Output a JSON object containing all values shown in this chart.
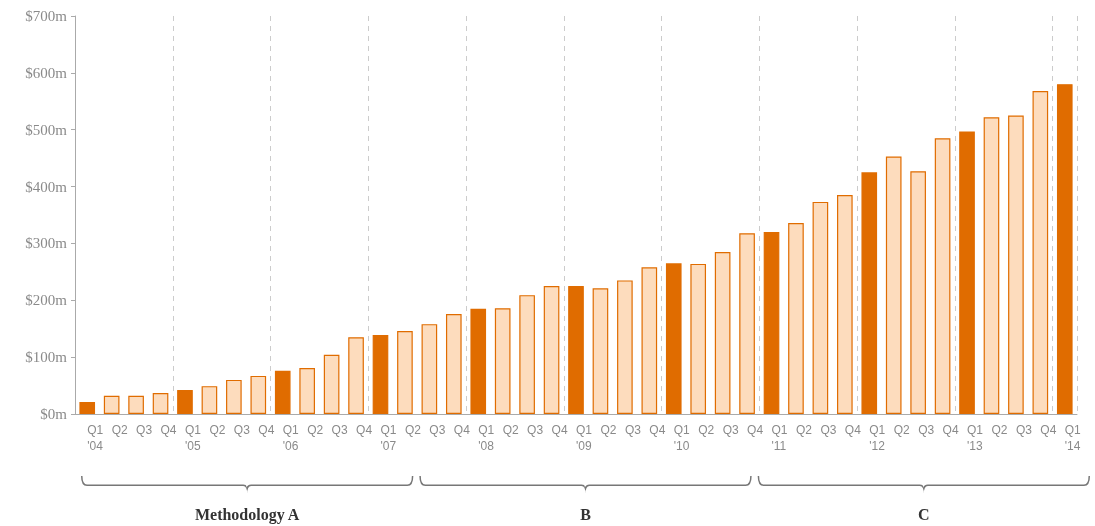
{
  "chart_data": {
    "type": "bar",
    "categories": [
      "Q1 '04",
      "Q2",
      "Q3",
      "Q4",
      "Q1 '05",
      "Q2",
      "Q3",
      "Q4",
      "Q1 '06",
      "Q2",
      "Q3",
      "Q4",
      "Q1 '07",
      "Q2",
      "Q3",
      "Q4",
      "Q1 '08",
      "Q2",
      "Q3",
      "Q4",
      "Q1 '09",
      "Q2",
      "Q3",
      "Q4",
      "Q1 '10",
      "Q2",
      "Q3",
      "Q4",
      "Q1 '11",
      "Q2",
      "Q3",
      "Q4",
      "Q1 '12",
      "Q2",
      "Q3",
      "Q4",
      "Q1 '13",
      "Q2",
      "Q3",
      "Q4",
      "Q1 '14"
    ],
    "series": [
      {
        "color": "#e06c00",
        "values": [
          21,
          32,
          32,
          37,
          42,
          49,
          60,
          67,
          76,
          81,
          104,
          135,
          139,
          146,
          158,
          176,
          185,
          186,
          209,
          225,
          225,
          221,
          235,
          258,
          265,
          264,
          285,
          318,
          320,
          336,
          373,
          385,
          425,
          453,
          427,
          485,
          497,
          522,
          525,
          568,
          580
        ],
        "colors": [
          "#e06c00",
          "#fddcbd",
          "#fddcbd",
          "#fddcbd",
          "#e06c00",
          "#fddcbd",
          "#fddcbd",
          "#fddcbd",
          "#e06c00",
          "#fddcbd",
          "#fddcbd",
          "#fddcbd",
          "#e06c00",
          "#fddcbd",
          "#fddcbd",
          "#fddcbd",
          "#e06c00",
          "#fddcbd",
          "#fddcbd",
          "#fddcbd",
          "#e06c00",
          "#fddcbd",
          "#fddcbd",
          "#fddcbd",
          "#e06c00",
          "#fddcbd",
          "#fddcbd",
          "#fddcbd",
          "#e06c00",
          "#fddcbd",
          "#fddcbd",
          "#fddcbd",
          "#e06c00",
          "#fddcbd",
          "#fddcbd",
          "#fddcbd",
          "#e06c00",
          "#fddcbd",
          "#fddcbd",
          "#fddcbd",
          "#e06c00"
        ]
      }
    ],
    "ylim": [
      0,
      700
    ],
    "yticks": [
      {
        "value": 0,
        "label": "$0m"
      },
      {
        "value": 100,
        "label": "$100m"
      },
      {
        "value": 200,
        "label": "$200m"
      },
      {
        "value": 300,
        "label": "$300m"
      },
      {
        "value": 400,
        "label": "$400m"
      },
      {
        "value": 500,
        "label": "$500m"
      },
      {
        "value": 600,
        "label": "$600m"
      },
      {
        "value": 700,
        "label": "$700m"
      }
    ],
    "grid": "x",
    "annotations": [
      "Methodology A",
      "B",
      "C"
    ]
  }
}
